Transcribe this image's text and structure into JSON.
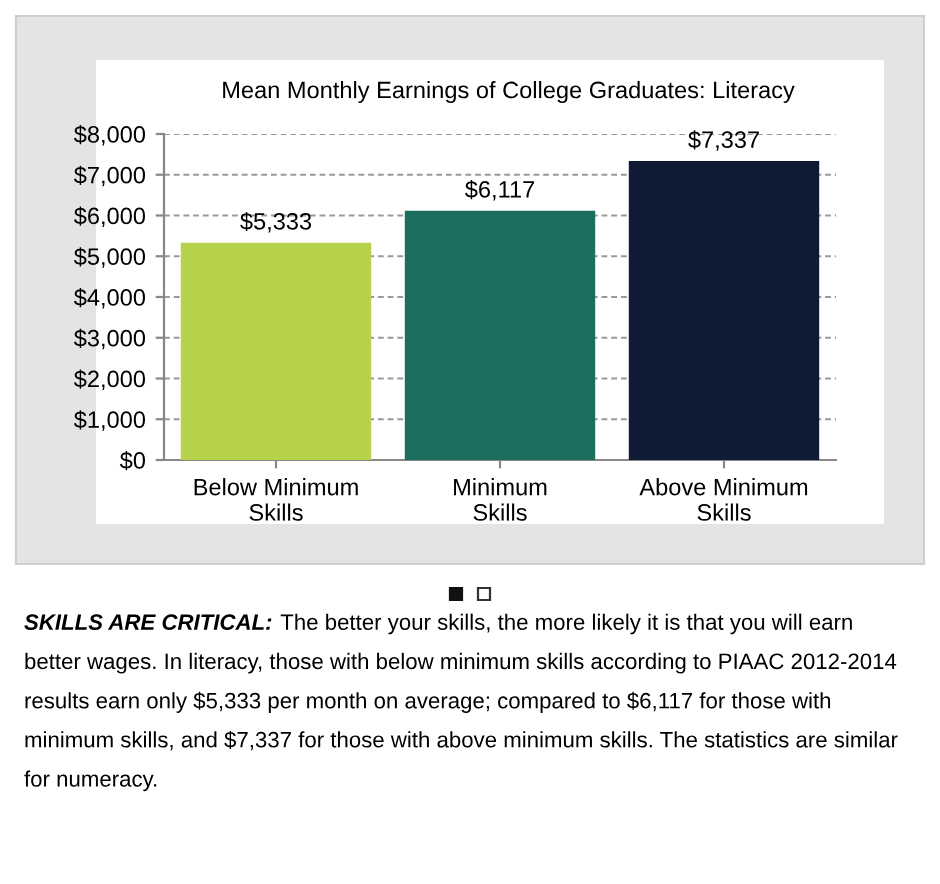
{
  "chart_data": {
    "type": "bar",
    "title": "Mean Monthly Earnings of College Graduates: Literacy",
    "categories": [
      "Below Minimum\nSkills",
      "Minimum\nSkills",
      "Above Minimum\nSkills"
    ],
    "values": [
      5333,
      6117,
      7337
    ],
    "colors": [
      "#b5d24a",
      "#1c6e5e",
      "#0f1a34"
    ],
    "value_labels": [
      "$5,333",
      "$6,117",
      "$7,337"
    ],
    "ylim": [
      0,
      8000
    ],
    "yticks": [
      {
        "value": 0,
        "label": "$0"
      },
      {
        "value": 1000,
        "label": "$1,000"
      },
      {
        "value": 2000,
        "label": "$2,000"
      },
      {
        "value": 3000,
        "label": "$3,000"
      },
      {
        "value": 4000,
        "label": "$4,000"
      },
      {
        "value": 5000,
        "label": "$5,000"
      },
      {
        "value": 6000,
        "label": "$6,000"
      },
      {
        "value": 7000,
        "label": "$7,000"
      },
      {
        "value": 8000,
        "label": "$8,000"
      }
    ],
    "grid": "y",
    "annotations": [
      "SKILLS ARE CRITICAL:",
      "The better your skills, the more likely it is that you will earn better wages. In literacy, those with below minimum skills according to PIAAC 2012-2014 results earn only $5,333 per month on average; compared to $6,117 for those with minimum skills, and $7,337 for those with above minimum skills. The statistics are similar for numeracy."
    ]
  }
}
